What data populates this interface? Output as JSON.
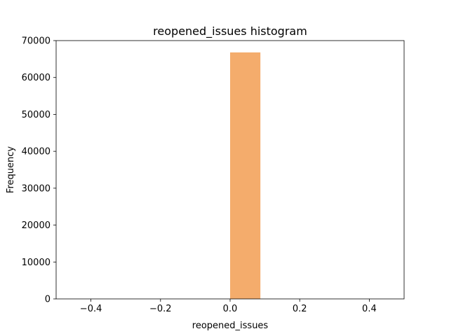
{
  "chart_data": {
    "type": "bar",
    "title": "reopened_issues histogram",
    "xlabel": "reopened_issues",
    "ylabel": "Frequency",
    "xlim": [
      -0.5,
      0.5
    ],
    "ylim": [
      0,
      70000
    ],
    "x_ticks": [
      -0.4,
      -0.2,
      0.0,
      0.2,
      0.4
    ],
    "x_tick_labels": [
      "−0.4",
      "−0.2",
      "0.0",
      "0.2",
      "0.4"
    ],
    "y_ticks": [
      0,
      10000,
      20000,
      30000,
      40000,
      50000,
      60000,
      70000
    ],
    "y_tick_labels": [
      "0",
      "10000",
      "20000",
      "30000",
      "40000",
      "50000",
      "60000",
      "70000"
    ],
    "bins": [
      {
        "x0": 0.0,
        "x1": 0.087,
        "count": 66800
      }
    ],
    "bar_color": "#f4ac6c",
    "grid": false,
    "legend": "none"
  }
}
